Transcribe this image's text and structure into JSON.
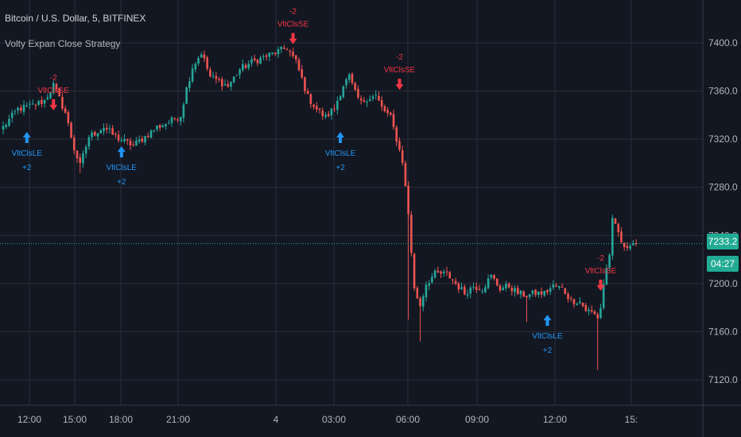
{
  "header": {
    "symbol_title": "Bitcoin / U.S. Dollar, 5, BITFINEX",
    "study_title": "Volty Expan Close Strategy"
  },
  "current_price": {
    "value": "7233.2",
    "countdown": "04:27"
  },
  "colors": {
    "background": "#131722",
    "grid": "#2a2e39",
    "up": "#26a69a",
    "down": "#ef5350",
    "buy_signal": "#2196f3",
    "sell_signal": "#f23645",
    "price_line": "#22ab94",
    "axis_text": "#b2b5be"
  },
  "chart_data": {
    "type": "candlestick",
    "y_axis": {
      "ticks": [
        7120.0,
        7160.0,
        7200.0,
        7240.0,
        7280.0,
        7320.0,
        7360.0,
        7400.0
      ],
      "tick_labels": [
        "7120.0",
        "7160.0",
        "7200.0",
        "7240.0",
        "7280.0",
        "7320.0",
        "7360.0",
        "7400.0"
      ],
      "range": [
        7108,
        7418
      ],
      "position": "right"
    },
    "x_axis": {
      "tick_labels": [
        "12:00",
        "15:00",
        "18:00",
        "21:00",
        "4",
        "03:00",
        "06:00",
        "09:00",
        "12:00",
        "15:"
      ]
    },
    "grid": true,
    "price_line": 7233.2,
    "close_path": [
      [
        0,
        7330
      ],
      [
        5,
        7345
      ],
      [
        10,
        7348
      ],
      [
        14,
        7352
      ],
      [
        17,
        7365
      ],
      [
        21,
        7342
      ],
      [
        24,
        7312
      ],
      [
        26,
        7298
      ],
      [
        29,
        7322
      ],
      [
        34,
        7330
      ],
      [
        38,
        7322
      ],
      [
        41,
        7318
      ],
      [
        44,
        7315
      ],
      [
        48,
        7322
      ],
      [
        52,
        7330
      ],
      [
        56,
        7334
      ],
      [
        60,
        7340
      ],
      [
        62,
        7362
      ],
      [
        64,
        7380
      ],
      [
        67,
        7392
      ],
      [
        70,
        7372
      ],
      [
        73,
        7368
      ],
      [
        76,
        7364
      ],
      [
        80,
        7378
      ],
      [
        84,
        7384
      ],
      [
        88,
        7388
      ],
      [
        92,
        7392
      ],
      [
        96,
        7396
      ],
      [
        99,
        7384
      ],
      [
        101,
        7370
      ],
      [
        103,
        7355
      ],
      [
        106,
        7345
      ],
      [
        109,
        7338
      ],
      [
        112,
        7346
      ],
      [
        115,
        7365
      ],
      [
        117,
        7372
      ],
      [
        119,
        7358
      ],
      [
        121,
        7350
      ],
      [
        123,
        7354
      ],
      [
        126,
        7356
      ],
      [
        128,
        7346
      ],
      [
        131,
        7338
      ],
      [
        133,
        7320
      ],
      [
        135,
        7302
      ],
      [
        137,
        7258
      ],
      [
        139,
        7195
      ],
      [
        141,
        7182
      ],
      [
        143,
        7200
      ],
      [
        146,
        7208
      ],
      [
        150,
        7208
      ],
      [
        153,
        7200
      ],
      [
        156,
        7192
      ],
      [
        159,
        7198
      ],
      [
        162,
        7196
      ],
      [
        165,
        7206
      ],
      [
        168,
        7196
      ],
      [
        171,
        7198
      ],
      [
        174,
        7192
      ],
      [
        177,
        7190
      ],
      [
        180,
        7192
      ],
      [
        183,
        7192
      ],
      [
        186,
        7198
      ],
      [
        189,
        7196
      ],
      [
        192,
        7186
      ],
      [
        195,
        7185
      ],
      [
        197,
        7178
      ],
      [
        199,
        7176
      ],
      [
        201,
        7172
      ],
      [
        202,
        7180
      ],
      [
        203,
        7200
      ],
      [
        205,
        7225
      ],
      [
        206,
        7252
      ],
      [
        208,
        7242
      ],
      [
        210,
        7228
      ],
      [
        212,
        7234
      ],
      [
        214,
        7234
      ]
    ],
    "signals": [
      {
        "side": "long",
        "label": "VltClsLE",
        "qty": "+2",
        "x": 8,
        "price": 7330
      },
      {
        "side": "short",
        "label": "VltClsSE",
        "qty": "-2",
        "x": 17,
        "price": 7340
      },
      {
        "side": "long",
        "label": "VltClsLE",
        "qty": "+2",
        "x": 40,
        "price": 7318
      },
      {
        "side": "short",
        "label": "VltClsSE",
        "qty": "-2",
        "x": 98,
        "price": 7395
      },
      {
        "side": "long",
        "label": "VltClsLE",
        "qty": "+2",
        "x": 114,
        "price": 7330
      },
      {
        "side": "short",
        "label": "VltClsSE",
        "qty": "-2",
        "x": 134,
        "price": 7357
      },
      {
        "side": "long",
        "label": "VltClsLE",
        "qty": "+2",
        "x": 184,
        "price": 7178
      },
      {
        "side": "short",
        "label": "VltClsSE",
        "qty": "-2",
        "x": 202,
        "price": 7190
      }
    ]
  }
}
